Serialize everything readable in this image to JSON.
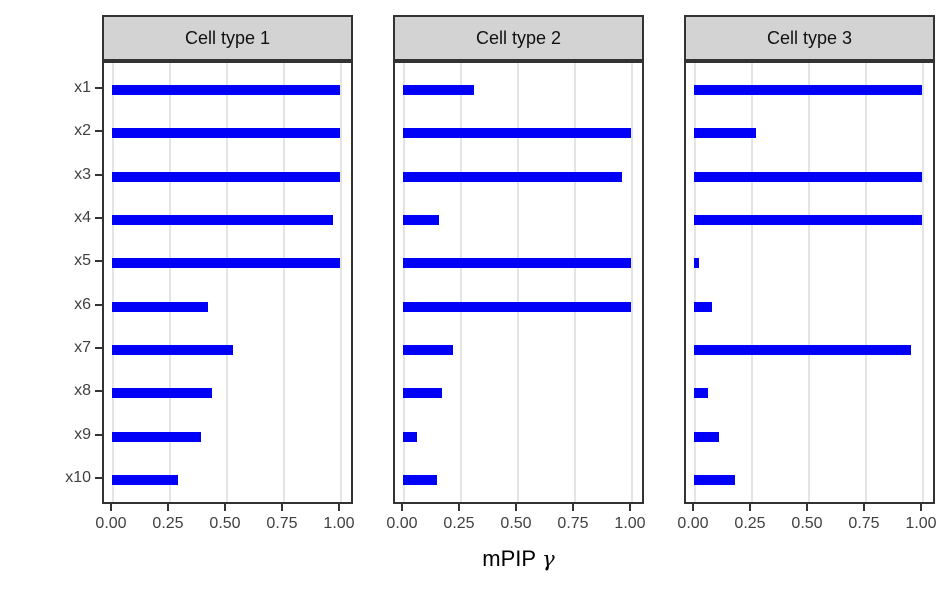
{
  "chart_data": {
    "type": "bar",
    "orientation": "horizontal",
    "facet_layout": "3 panels side by side, shared y axis",
    "categories": [
      "x1",
      "x2",
      "x3",
      "x4",
      "x5",
      "x6",
      "x7",
      "x8",
      "x9",
      "x10"
    ],
    "facets": [
      {
        "name": "Cell type 1",
        "values": [
          1.0,
          1.0,
          1.0,
          0.97,
          1.0,
          0.42,
          0.53,
          0.44,
          0.39,
          0.29
        ]
      },
      {
        "name": "Cell type 2",
        "values": [
          0.31,
          1.0,
          0.96,
          0.16,
          1.0,
          1.0,
          0.22,
          0.17,
          0.06,
          0.15
        ]
      },
      {
        "name": "Cell type 3",
        "values": [
          1.0,
          0.27,
          1.0,
          1.0,
          0.02,
          0.08,
          0.95,
          0.06,
          0.11,
          0.18
        ]
      }
    ],
    "xlabel": {
      "text": "mPIP",
      "symbol": "γ"
    },
    "ylabel": "",
    "xlim": [
      0,
      1
    ],
    "x_ticks": [
      {
        "value": 0.0,
        "label": "0.00"
      },
      {
        "value": 0.25,
        "label": "0.25"
      },
      {
        "value": 0.5,
        "label": "0.50"
      },
      {
        "value": 0.75,
        "label": "0.75"
      },
      {
        "value": 1.0,
        "label": "1.00"
      }
    ],
    "grid": "vertical major gridlines only",
    "legend": "none",
    "colors": {
      "bar": "#0101F7",
      "grid": "#E4E4E4",
      "strip_fill": "#D3D3D3",
      "panel_border": "#333333",
      "tick_mark": "#333333",
      "axis_text": "#404040",
      "axis_title": "#000000"
    }
  }
}
